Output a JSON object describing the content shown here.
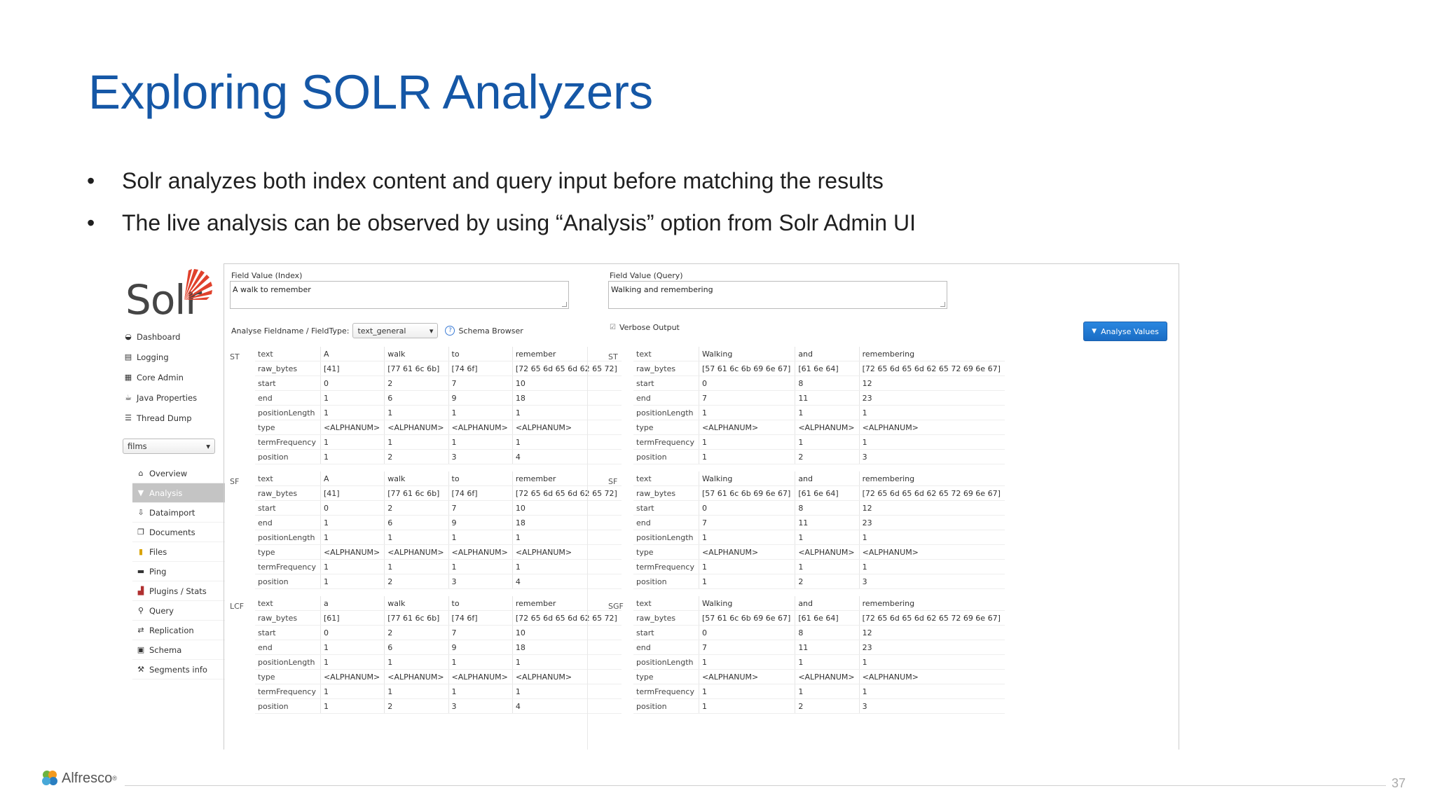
{
  "slide": {
    "title": "Exploring SOLR Analyzers",
    "bullets": [
      "Solr analyzes both index content and query input before matching the results",
      "The live analysis can be observed by using “Analysis” option from Solr Admin UI"
    ],
    "page_number": "37",
    "footer_logo": "Alfresco",
    "footer_logo_mark": "®"
  },
  "solr": {
    "logo_text": "Solr",
    "nav": [
      "Dashboard",
      "Logging",
      "Core Admin",
      "Java Properties",
      "Thread Dump"
    ],
    "core_selected": "films",
    "core_nav": [
      "Overview",
      "Analysis",
      "Dataimport",
      "Documents",
      "Files",
      "Ping",
      "Plugins / Stats",
      "Query",
      "Replication",
      "Schema",
      "Segments info"
    ],
    "index_label": "Field Value (Index)",
    "index_value": "A walk to remember",
    "query_label": "Field Value (Query)",
    "query_value": "Walking and remembering",
    "fieldtype_label": "Analyse Fieldname / FieldType:",
    "fieldtype_value": "text_general",
    "schema_browser": "Schema Browser",
    "verbose_output": "Verbose Output",
    "analyse_button": "Analyse Values",
    "row_labels": [
      "text",
      "raw_bytes",
      "start",
      "end",
      "positionLength",
      "type",
      "termFrequency",
      "position"
    ],
    "index_blocks": [
      {
        "step": "ST",
        "tokens": [
          [
            "A",
            "[41]",
            "0",
            "1",
            "1",
            "<ALPHANUM>",
            "1",
            "1"
          ],
          [
            "walk",
            "[77 61 6c 6b]",
            "2",
            "6",
            "1",
            "<ALPHANUM>",
            "1",
            "2"
          ],
          [
            "to",
            "[74 6f]",
            "7",
            "9",
            "1",
            "<ALPHANUM>",
            "1",
            "3"
          ],
          [
            "remember",
            "[72 65 6d 65 6d 62 65 72]",
            "10",
            "18",
            "1",
            "<ALPHANUM>",
            "1",
            "4"
          ]
        ]
      },
      {
        "step": "SF",
        "tokens": [
          [
            "A",
            "[41]",
            "0",
            "1",
            "1",
            "<ALPHANUM>",
            "1",
            "1"
          ],
          [
            "walk",
            "[77 61 6c 6b]",
            "2",
            "6",
            "1",
            "<ALPHANUM>",
            "1",
            "2"
          ],
          [
            "to",
            "[74 6f]",
            "7",
            "9",
            "1",
            "<ALPHANUM>",
            "1",
            "3"
          ],
          [
            "remember",
            "[72 65 6d 65 6d 62 65 72]",
            "10",
            "18",
            "1",
            "<ALPHANUM>",
            "1",
            "4"
          ]
        ]
      },
      {
        "step": "LCF",
        "tokens": [
          [
            "a",
            "[61]",
            "0",
            "1",
            "1",
            "<ALPHANUM>",
            "1",
            "1"
          ],
          [
            "walk",
            "[77 61 6c 6b]",
            "2",
            "6",
            "1",
            "<ALPHANUM>",
            "1",
            "2"
          ],
          [
            "to",
            "[74 6f]",
            "7",
            "9",
            "1",
            "<ALPHANUM>",
            "1",
            "3"
          ],
          [
            "remember",
            "[72 65 6d 65 6d 62 65 72]",
            "10",
            "18",
            "1",
            "<ALPHANUM>",
            "1",
            "4"
          ]
        ]
      }
    ],
    "query_blocks": [
      {
        "step": "ST",
        "tokens": [
          [
            "Walking",
            "[57 61 6c 6b 69 6e 67]",
            "0",
            "7",
            "1",
            "<ALPHANUM>",
            "1",
            "1"
          ],
          [
            "and",
            "[61 6e 64]",
            "8",
            "11",
            "1",
            "<ALPHANUM>",
            "1",
            "2"
          ],
          [
            "remembering",
            "[72 65 6d 65 6d 62 65 72 69 6e 67]",
            "12",
            "23",
            "1",
            "<ALPHANUM>",
            "1",
            "3"
          ]
        ]
      },
      {
        "step": "SF",
        "tokens": [
          [
            "Walking",
            "[57 61 6c 6b 69 6e 67]",
            "0",
            "7",
            "1",
            "<ALPHANUM>",
            "1",
            "1"
          ],
          [
            "and",
            "[61 6e 64]",
            "8",
            "11",
            "1",
            "<ALPHANUM>",
            "1",
            "2"
          ],
          [
            "remembering",
            "[72 65 6d 65 6d 62 65 72 69 6e 67]",
            "12",
            "23",
            "1",
            "<ALPHANUM>",
            "1",
            "3"
          ]
        ]
      },
      {
        "step": "SGF",
        "tokens": [
          [
            "Walking",
            "[57 61 6c 6b 69 6e 67]",
            "0",
            "7",
            "1",
            "<ALPHANUM>",
            "1",
            "1"
          ],
          [
            "and",
            "[61 6e 64]",
            "8",
            "11",
            "1",
            "<ALPHANUM>",
            "1",
            "2"
          ],
          [
            "remembering",
            "[72 65 6d 65 6d 62 65 72 69 6e 67]",
            "12",
            "23",
            "1",
            "<ALPHANUM>",
            "1",
            "3"
          ]
        ]
      }
    ]
  }
}
